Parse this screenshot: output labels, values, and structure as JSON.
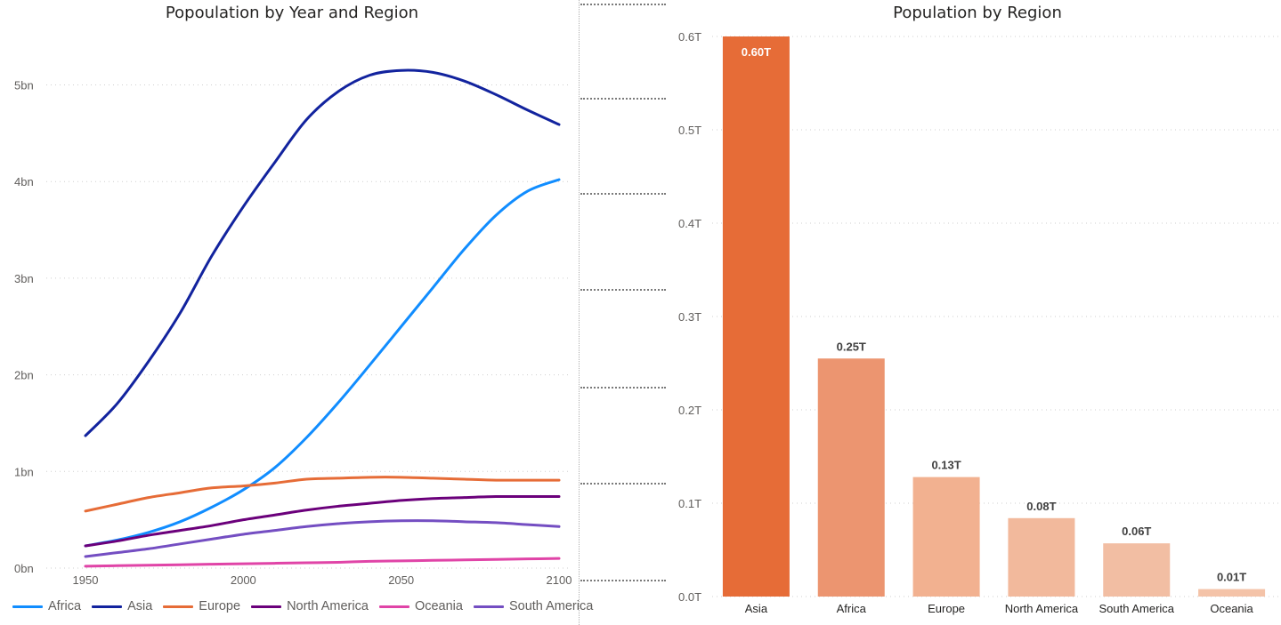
{
  "chart_data": [
    {
      "type": "line",
      "title": "Popoulation by Year and Region",
      "x": [
        1950,
        1960,
        1970,
        1980,
        1990,
        2000,
        2010,
        2020,
        2030,
        2040,
        2050,
        2060,
        2070,
        2080,
        2090,
        2100
      ],
      "x_ticks": [
        "1950",
        "2000",
        "2050",
        "2100"
      ],
      "y_ticks": [
        "0bn",
        "1bn",
        "2bn",
        "3bn",
        "4bn",
        "5bn"
      ],
      "ylim": [
        0,
        5.5
      ],
      "series": [
        {
          "name": "Africa",
          "color": "#118DFF",
          "values": [
            0.23,
            0.29,
            0.37,
            0.48,
            0.63,
            0.81,
            1.04,
            1.35,
            1.71,
            2.1,
            2.5,
            2.9,
            3.3,
            3.65,
            3.9,
            4.02
          ]
        },
        {
          "name": "Asia",
          "color": "#12239E",
          "values": [
            1.37,
            1.7,
            2.14,
            2.64,
            3.23,
            3.74,
            4.2,
            4.64,
            4.93,
            5.1,
            5.15,
            5.13,
            5.04,
            4.9,
            4.74,
            4.59
          ]
        },
        {
          "name": "Europe",
          "color": "#E66C37",
          "values": [
            0.59,
            0.66,
            0.73,
            0.78,
            0.83,
            0.85,
            0.88,
            0.92,
            0.93,
            0.94,
            0.94,
            0.93,
            0.92,
            0.91,
            0.91,
            0.91
          ]
        },
        {
          "name": "North America",
          "color": "#6B007B",
          "values": [
            0.23,
            0.28,
            0.34,
            0.39,
            0.44,
            0.5,
            0.55,
            0.6,
            0.64,
            0.67,
            0.7,
            0.72,
            0.73,
            0.74,
            0.74,
            0.74
          ]
        },
        {
          "name": "Oceania",
          "color": "#E044A7",
          "values": [
            0.02,
            0.025,
            0.03,
            0.035,
            0.04,
            0.045,
            0.05,
            0.055,
            0.06,
            0.07,
            0.075,
            0.08,
            0.085,
            0.09,
            0.095,
            0.1
          ]
        },
        {
          "name": "South America",
          "color": "#744EC2",
          "values": [
            0.12,
            0.16,
            0.2,
            0.25,
            0.3,
            0.35,
            0.39,
            0.43,
            0.46,
            0.48,
            0.49,
            0.49,
            0.48,
            0.47,
            0.45,
            0.43
          ]
        }
      ],
      "legend_position": "bottom-left",
      "grid": true
    },
    {
      "type": "bar",
      "title": "Population by Region",
      "categories": [
        "Asia",
        "Africa",
        "Europe",
        "North America",
        "South America",
        "Oceania"
      ],
      "values": [
        0.6,
        0.255,
        0.128,
        0.084,
        0.057,
        0.008
      ],
      "data_labels": [
        "0.60T",
        "0.25T",
        "0.13T",
        "0.08T",
        "0.06T",
        "0.01T"
      ],
      "colors": [
        "#E66C37",
        "#EC9570",
        "#F2B190",
        "#F2B99C",
        "#F2BEA3",
        "#F4C3A8"
      ],
      "y_ticks": [
        "0.0T",
        "0.1T",
        "0.2T",
        "0.3T",
        "0.4T",
        "0.5T",
        "0.6T"
      ],
      "ylim": [
        0,
        0.6
      ],
      "grid": true
    }
  ]
}
